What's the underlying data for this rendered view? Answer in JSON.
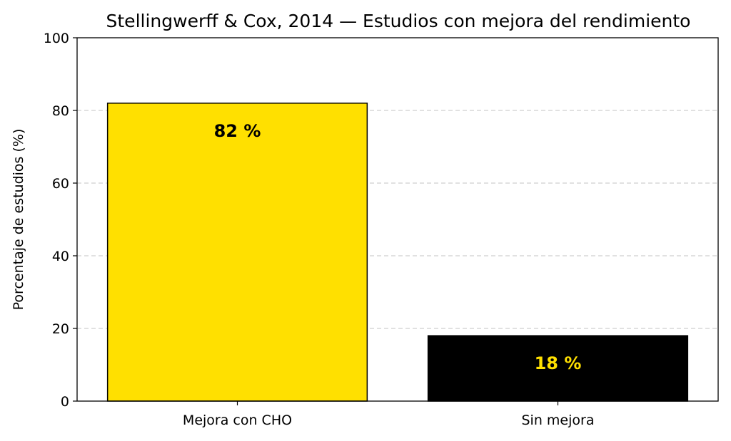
{
  "chart_data": {
    "type": "bar",
    "title": "Stellingwerff & Cox, 2014 — Estudios con mejora del rendimiento",
    "xlabel": "",
    "ylabel": "Porcentaje de estudios (%)",
    "ylim": [
      0,
      100
    ],
    "yticks": [
      0,
      20,
      40,
      60,
      80,
      100
    ],
    "grid": "horizontal dashed",
    "categories": [
      "Mejora con CHO",
      "Sin mejora"
    ],
    "values": [
      82,
      18
    ],
    "value_labels": [
      "82 %",
      "18 %"
    ],
    "bar_colors": [
      "#FFE000",
      "#000000"
    ],
    "label_colors": [
      "#000000",
      "#FFE000"
    ]
  }
}
